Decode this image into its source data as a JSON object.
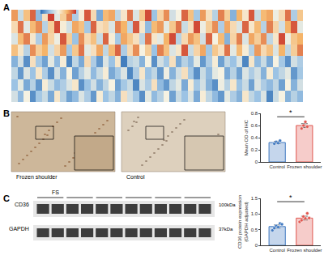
{
  "chart_data": [
    {
      "type": "heatmap",
      "panel_label": "A",
      "tick_labels": false,
      "zlim": [
        -2,
        2
      ],
      "colors": [
        "#2c6db4",
        "#9cc3e4",
        "#f6f2e2",
        "#f5b469",
        "#c8312a"
      ],
      "z": [
        [
          1.2,
          -0.5,
          0.8,
          1.6,
          -1.1,
          0.3,
          1.9,
          -0.2,
          0.6,
          1.4,
          -0.8,
          0.1,
          1.7,
          0.4,
          -1.3,
          0.9,
          1.1,
          -0.6,
          0.2,
          1.5,
          -0.3,
          0.7,
          1.8,
          -1.0,
          0.5,
          1.3,
          -0.4,
          0,
          1.6,
          0.8,
          -0.9,
          1.2,
          0.3,
          -0.7,
          1.4,
          0.6,
          -1.2,
          1.0,
          0.2,
          1.7,
          -0.5,
          0.9,
          1.1,
          -0.1,
          0.4,
          1.5,
          -0.8,
          0.7
        ],
        [
          0.4,
          1.5,
          -0.2,
          0.9,
          1.3,
          -0.7,
          0.6,
          1.8,
          0.1,
          -0.4,
          1.1,
          0.8,
          -0.9,
          1.6,
          0.3,
          0.5,
          -0.3,
          1.4,
          1.0,
          -0.6,
          1.7,
          0.2,
          -1.1,
          0.9,
          1.2,
          -0.2,
          0.7,
          1.5,
          -0.5,
          0.3,
          1.8,
          -0.1,
          0.6,
          1.3,
          -0.8,
          1.1,
          0.4,
          -0.3,
          1.6,
          0.2,
          0.9,
          -0.7,
          1.4,
          0.5,
          -0.4,
          1.0,
          1.7,
          -0.2
        ],
        [
          -0.3,
          0.9,
          1.4,
          0.2,
          -0.8,
          1.2,
          0.5,
          -0.1,
          1.7,
          0.6,
          -1.0,
          1.3,
          0.4,
          0.8,
          -0.5,
          1.6,
          0.1,
          -0.9,
          1.1,
          0.7,
          0.3,
          -0.6,
          1.5,
          0.2,
          -0.2,
          1.0,
          1.8,
          -0.7,
          0.4,
          1.2,
          0.8,
          -0.4,
          1.6,
          0,
          0.9,
          -1.2,
          0.5,
          1.4,
          -0.3,
          1.1,
          0.6,
          1.3,
          -0.6,
          0.2,
          1.8,
          -0.1,
          0.7,
          1.0
        ],
        [
          0.8,
          0.2,
          -0.7,
          1.3,
          0.6,
          1.0,
          -0.4,
          0.5,
          1.2,
          -0.9,
          0.7,
          1.5,
          -0.2,
          0.3,
          1.1,
          -0.6,
          0.9,
          1.6,
          -0.8,
          0.4,
          1.3,
          0,
          0.6,
          -1.0,
          1.4,
          0.8,
          -0.3,
          0.2,
          1.7,
          -0.5,
          0.5,
          1.1,
          -0.9,
          0.7,
          0.3,
          1.5,
          -0.2,
          0.9,
          0.1,
          -0.7,
          1.2,
          0.4,
          0.8,
          -0.3,
          1.0,
          -0.6,
          0.6,
          1.4
        ],
        [
          -1.2,
          -0.4,
          -1.6,
          0.3,
          -0.9,
          -1.4,
          -0.2,
          -1.1,
          0.1,
          -1.7,
          -0.6,
          -1.3,
          0.4,
          -0.8,
          -1.5,
          -0.3,
          -1.0,
          0.2,
          -1.8,
          -0.7,
          -0.5,
          -1.2,
          0,
          -1.6,
          -0.4,
          -0.9,
          0.3,
          -1.3,
          -0.7,
          -1.1,
          -0.2,
          -1.5,
          -0.8,
          0.1,
          -1.4,
          -0.6,
          -1.0,
          -0.3,
          -1.7,
          0.2,
          -1.1,
          -0.5,
          -1.3,
          0,
          -0.9,
          -1.6,
          -0.4,
          -0.8
        ],
        [
          -0.6,
          -1.5,
          -0.3,
          -1.0,
          0.2,
          -0.8,
          -1.6,
          -0.4,
          -1.2,
          0,
          -1.4,
          -0.7,
          -0.2,
          -1.1,
          -0.5,
          0.1,
          -1.3,
          -0.9,
          -0.3,
          -1.7,
          -0.8,
          0.2,
          -1.0,
          -0.6,
          -1.5,
          -0.1,
          -1.2,
          -0.4,
          0.3,
          -0.9,
          -1.6,
          -0.5,
          -1.1,
          -0.2,
          0,
          -1.3,
          -0.7,
          -1.4,
          -0.3,
          -0.8,
          -0.4,
          -1.2,
          0.1,
          -1.0,
          -0.6,
          -0.2,
          -1.5,
          -0.9
        ],
        [
          -1.0,
          -0.2,
          -1.3,
          -0.7,
          -1.5,
          0.1,
          -0.5,
          -1.1,
          -0.8,
          -0.3,
          0.2,
          -1.6,
          -1.0,
          -0.4,
          -1.2,
          -0.6,
          0,
          -1.4,
          -0.9,
          -0.5,
          -1.7,
          -0.3,
          -0.8,
          0.3,
          -1.1,
          -1.5,
          -0.6,
          -0.2,
          -1.3,
          0.1,
          -0.9,
          -0.4,
          -1.2,
          -1.6,
          -0.1,
          -0.7,
          0.2,
          -1.0,
          -0.5,
          -1.4,
          -0.3,
          -0.8,
          -1.1,
          -0.6,
          -1.4,
          0,
          -1.2,
          -0.4
        ],
        [
          -0.4,
          -1.1,
          0,
          -1.6,
          -0.9,
          -0.5,
          -1.3,
          0.2,
          -0.7,
          -1.4,
          -1.1,
          -0.3,
          -0.8,
          -1.5,
          0.1,
          -1.0,
          -0.6,
          -1.2,
          0.3,
          -0.4,
          -0.9,
          -1.6,
          -0.2,
          -1.1,
          -0.7,
          0,
          -1.4,
          -0.5,
          -1.0,
          -0.3,
          -1.3,
          0.1,
          -0.6,
          -1.1,
          -1.5,
          -0.2,
          -0.8,
          -1.2,
          0.2,
          -0.6,
          -1.0,
          -0.3,
          -1.7,
          -0.5,
          0,
          -1.2,
          -0.7,
          -1.1
        ]
      ]
    },
    {
      "type": "bar",
      "panel_label": "B",
      "y_label": "Mean OD of IHC",
      "images": [
        "Frozen shoulder",
        "Control"
      ],
      "categories": [
        "Control",
        "Frozen shoulder"
      ],
      "values": [
        0.32,
        0.6
      ],
      "errors": [
        0.02,
        0.03
      ],
      "points": [
        [
          0.3,
          0.33,
          0.31,
          0.35
        ],
        [
          0.55,
          0.6,
          0.66,
          0.58
        ]
      ],
      "colors": [
        "#3f78c0",
        "#e0564f"
      ],
      "ylim": [
        0,
        0.8
      ],
      "yticks": [
        0,
        0.2,
        0.4,
        0.6,
        0.8
      ],
      "annotations": [
        "*"
      ],
      "grid": false
    },
    {
      "type": "bar",
      "panel_label": "C",
      "y_label": [
        "CD36 protein expression",
        "(GAPDH adjusted)"
      ],
      "blot": {
        "group_label": "FS",
        "lanes": 12,
        "rows": [
          {
            "name": "CD36",
            "size": "100kDa"
          },
          {
            "name": "GAPDH",
            "size": "37kDa"
          }
        ]
      },
      "categories": [
        "Control",
        "Frozen shoulder"
      ],
      "values": [
        0.6,
        0.87
      ],
      "errors": [
        0.05,
        0.06
      ],
      "points": [
        [
          0.48,
          0.55,
          0.62,
          0.58,
          0.7,
          0.67
        ],
        [
          0.75,
          0.8,
          0.92,
          0.86,
          1.02,
          0.87
        ]
      ],
      "colors": [
        "#3f78c0",
        "#e0564f"
      ],
      "ylim": [
        0,
        1.5
      ],
      "yticks": [
        0,
        0.5,
        {
          "value": 1,
          "label": "1.0"
        },
        1.5
      ],
      "annotations": [
        "*"
      ],
      "grid": false
    }
  ]
}
